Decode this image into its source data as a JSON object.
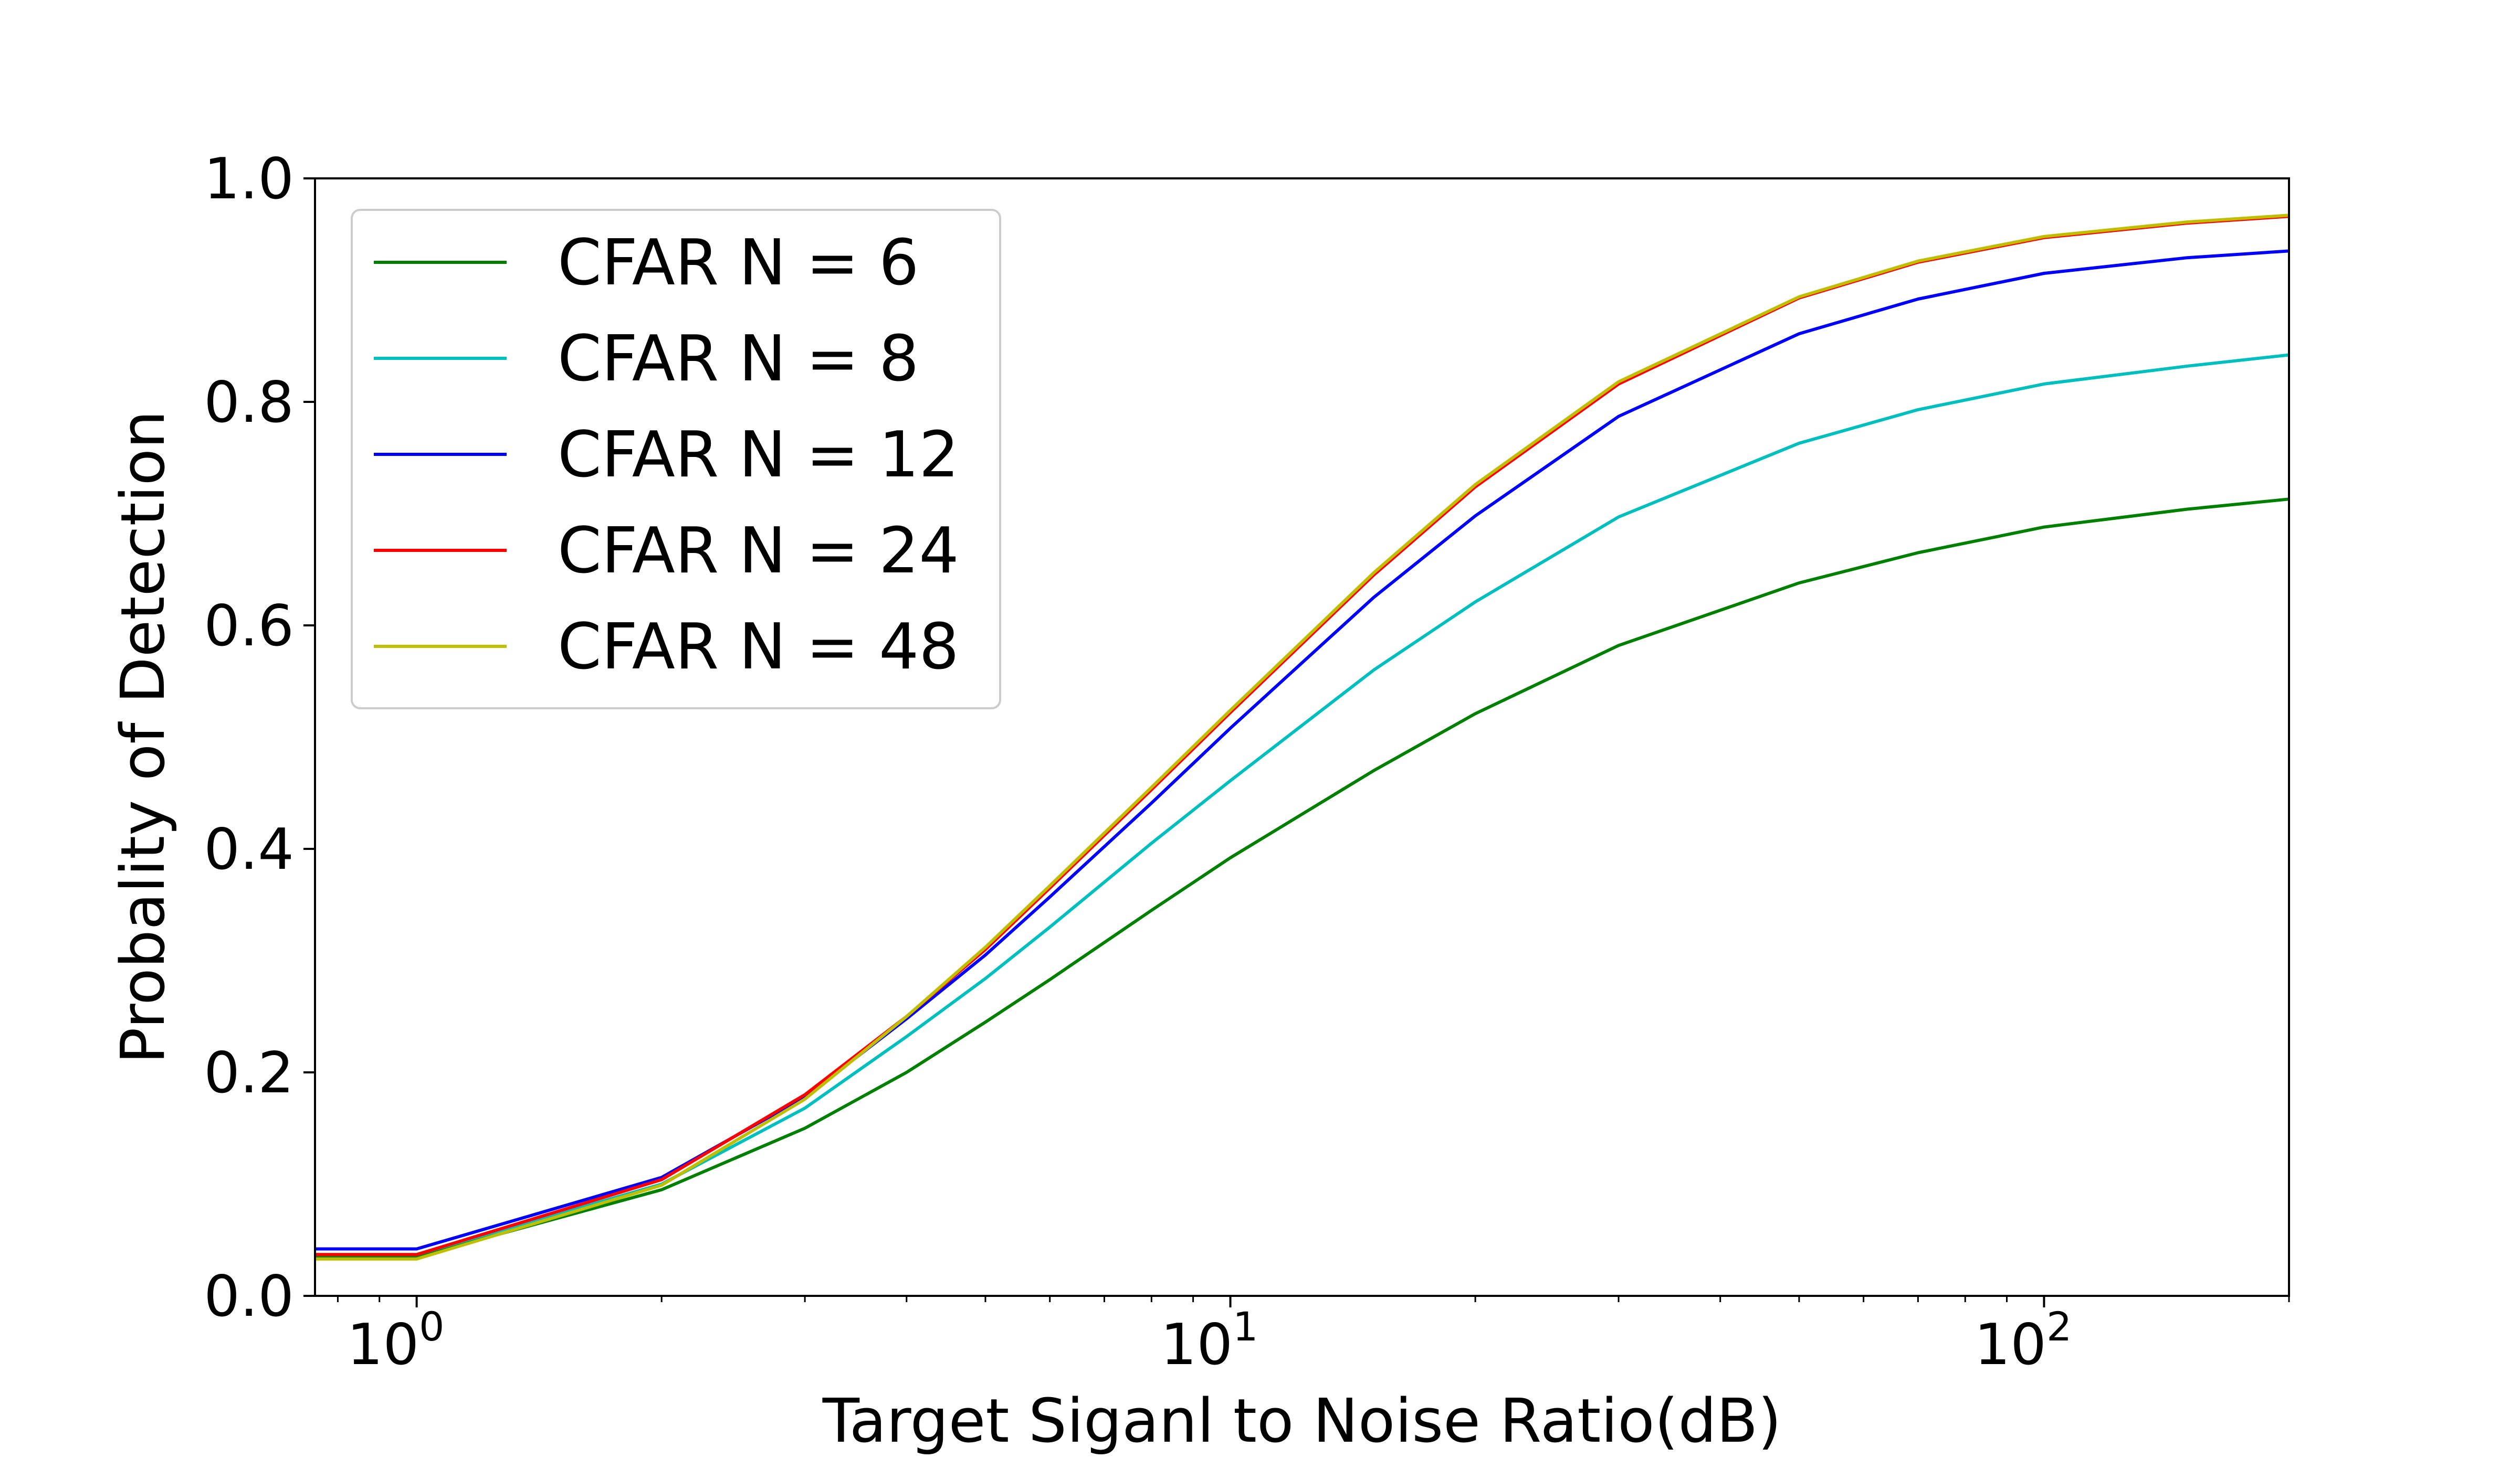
{
  "chart_data": {
    "type": "line",
    "title": "",
    "xlabel": "Target Siganl to Noise Ratio(dB)",
    "ylabel": "Probality of Detection",
    "xscale": "log",
    "xlim": [
      0.75,
      200
    ],
    "ylim": [
      0.0,
      1.0
    ],
    "grid": false,
    "legend_position": "upper-left",
    "x_ticks": [
      {
        "base": "10",
        "exp": "0",
        "value": 1
      },
      {
        "base": "10",
        "exp": "1",
        "value": 10
      },
      {
        "base": "10",
        "exp": "2",
        "value": 100
      }
    ],
    "y_ticks": [
      {
        "value": 0.0,
        "label": "0.0"
      },
      {
        "value": 0.2,
        "label": "0.2"
      },
      {
        "value": 0.4,
        "label": "0.4"
      },
      {
        "value": 0.6,
        "label": "0.6"
      },
      {
        "value": 0.8,
        "label": "0.8"
      },
      {
        "value": 1.0,
        "label": "1.0"
      }
    ],
    "x": [
      0.75,
      1,
      2,
      3,
      4,
      5,
      6,
      8,
      10,
      15,
      20,
      30,
      50,
      70,
      100,
      150,
      200
    ],
    "series": [
      {
        "name": "CFAR N = 6",
        "color": "#008000",
        "values": [
          0.035,
          0.035,
          0.095,
          0.15,
          0.2,
          0.245,
          0.283,
          0.345,
          0.392,
          0.47,
          0.521,
          0.582,
          0.638,
          0.665,
          0.688,
          0.704,
          0.713
        ]
      },
      {
        "name": "CFAR N = 8",
        "color": "#00bfbf",
        "values": [
          0.037,
          0.037,
          0.1,
          0.168,
          0.232,
          0.284,
          0.33,
          0.405,
          0.461,
          0.56,
          0.621,
          0.697,
          0.763,
          0.793,
          0.816,
          0.832,
          0.842
        ]
      },
      {
        "name": "CFAR N = 12",
        "color": "#0000ff",
        "values": [
          0.042,
          0.042,
          0.106,
          0.178,
          0.248,
          0.305,
          0.357,
          0.441,
          0.508,
          0.625,
          0.698,
          0.787,
          0.861,
          0.892,
          0.915,
          0.929,
          0.935
        ]
      },
      {
        "name": "CFAR N = 24",
        "color": "#ff0000",
        "values": [
          0.037,
          0.037,
          0.104,
          0.18,
          0.25,
          0.31,
          0.365,
          0.453,
          0.522,
          0.645,
          0.724,
          0.816,
          0.893,
          0.925,
          0.947,
          0.96,
          0.966
        ]
      },
      {
        "name": "CFAR N = 48",
        "color": "#bfbf00",
        "values": [
          0.033,
          0.033,
          0.099,
          0.176,
          0.25,
          0.312,
          0.367,
          0.455,
          0.524,
          0.647,
          0.726,
          0.818,
          0.894,
          0.926,
          0.948,
          0.961,
          0.967
        ]
      }
    ]
  }
}
